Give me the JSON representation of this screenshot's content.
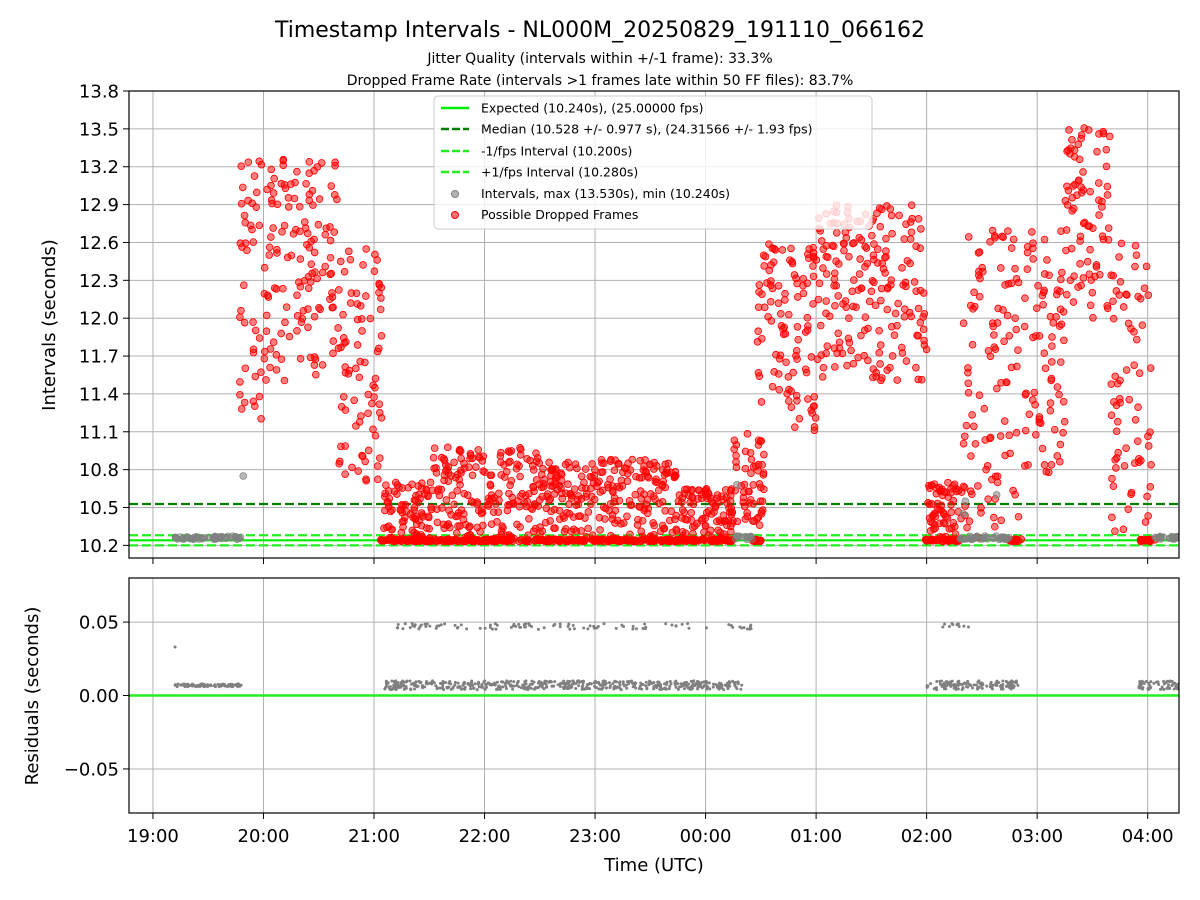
{
  "figure": {
    "title": "Timestamp Intervals - NL000M_20250829_191110_066162",
    "subtitle_1": "Jitter Quality (intervals within +/-1 frame): 33.3%",
    "subtitle_2": "Dropped Frame Rate (intervals >1 frames late within 50 FF files): 83.7%"
  },
  "colors": {
    "expected": "#00ee00",
    "median": "#008000",
    "interval_lines": "#22ee22",
    "points": "#808080",
    "dropped": "#ff0000",
    "residual_line": "#22ee22",
    "grid": "#b0b0b0"
  },
  "chart_data": [
    {
      "type": "scatter",
      "panel": "top",
      "xlabel": "",
      "ylabel": "Intervals (seconds)",
      "ylim": [
        10.1,
        13.8
      ],
      "yticks": [
        "10.2",
        "10.5",
        "10.8",
        "11.1",
        "11.4",
        "11.7",
        "12.0",
        "12.3",
        "12.6",
        "12.9",
        "13.2",
        "13.5",
        "13.8"
      ],
      "x_axis": {
        "type": "time",
        "range": [
          "18:47",
          "04:17"
        ],
        "ticks": [
          "19:00",
          "20:00",
          "21:00",
          "22:00",
          "23:00",
          "00:00",
          "01:00",
          "02:00",
          "03:00",
          "04:00"
        ]
      },
      "grid": true,
      "legend_position": "upper-center",
      "reference_lines": [
        {
          "name": "Expected (10.240s), (25.00000 fps)",
          "y": 10.24,
          "style": "solid",
          "color": "#00ee00"
        },
        {
          "name": "Median (10.528 +/- 0.977 s), (24.31566 +/- 1.93 fps)",
          "y": 10.528,
          "style": "dashed",
          "color": "#008000"
        },
        {
          "name": "-1/fps Interval (10.200s)",
          "y": 10.2,
          "style": "dashed",
          "color": "#22ee22"
        },
        {
          "name": "+1/fps Interval (10.280s)",
          "y": 10.28,
          "style": "dashed",
          "color": "#22ee22"
        }
      ],
      "series": [
        {
          "name": "Intervals, max (13.530s), min (10.240s)",
          "marker": "circle",
          "color": "#808080",
          "max": 13.53,
          "min": 10.24
        },
        {
          "name": "Possible Dropped Frames",
          "marker": "circle",
          "color": "#ff0000",
          "segments": [
            {
              "x": [
                "19:47",
                "20:03"
              ],
              "y": [
                11.2,
                13.45
              ]
            },
            {
              "x": [
                "20:03",
                "20:40"
              ],
              "y": [
                11.5,
                13.3
              ]
            },
            {
              "x": [
                "20:40",
                "21:05"
              ],
              "y": [
                10.7,
                12.6
              ]
            },
            {
              "x": [
                "21:05",
                "21:30"
              ],
              "y": [
                10.24,
                10.7
              ]
            },
            {
              "x": [
                "21:30",
                "22:30"
              ],
              "y": [
                10.24,
                10.98
              ]
            },
            {
              "x": [
                "22:30",
                "23:45"
              ],
              "y": [
                10.24,
                10.88
              ]
            },
            {
              "x": [
                "23:45",
                "00:15"
              ],
              "y": [
                10.24,
                10.65
              ]
            },
            {
              "x": [
                "00:15",
                "00:32"
              ],
              "y": [
                10.3,
                11.1
              ]
            },
            {
              "x": [
                "00:28",
                "01:00"
              ],
              "y": [
                11.1,
                12.6
              ]
            },
            {
              "x": [
                "01:00",
                "02:00"
              ],
              "y": [
                11.5,
                12.9
              ]
            },
            {
              "x": [
                "02:00",
                "02:22"
              ],
              "y": [
                10.24,
                10.7
              ]
            },
            {
              "x": [
                "02:20",
                "02:50"
              ],
              "y": [
                10.24,
                12.7
              ]
            },
            {
              "x": [
                "02:52",
                "03:15"
              ],
              "y": [
                10.7,
                12.7
              ]
            },
            {
              "x": [
                "03:15",
                "03:40"
              ],
              "y": [
                12.0,
                13.53
              ]
            },
            {
              "x": [
                "03:40",
                "04:02"
              ],
              "y": [
                10.3,
                12.6
              ]
            }
          ],
          "floor_bands": [
            {
              "x": [
                "21:03",
                "22:30"
              ],
              "y": 10.24
            },
            {
              "x": [
                "22:30",
                "00:15"
              ],
              "y": 10.24
            },
            {
              "x": [
                "00:25",
                "00:30"
              ],
              "y": 10.24
            },
            {
              "x": [
                "01:58",
                "02:18"
              ],
              "y": 10.24
            },
            {
              "x": [
                "02:45",
                "02:52"
              ],
              "y": 10.24
            },
            {
              "x": [
                "03:56",
                "04:05"
              ],
              "y": 10.24
            }
          ]
        }
      ]
    },
    {
      "type": "scatter",
      "panel": "bottom",
      "xlabel": "Time (UTC)",
      "ylabel": "Residuals (seconds)",
      "ylim": [
        -0.08,
        0.08
      ],
      "yticks": [
        "−0.05",
        "0.00",
        "0.05"
      ],
      "ytick_values": [
        -0.05,
        0.0,
        0.05
      ],
      "x_axis": {
        "type": "time",
        "range": [
          "18:47",
          "04:17"
        ],
        "ticks": [
          "19:00",
          "20:00",
          "21:00",
          "22:00",
          "23:00",
          "00:00",
          "01:00",
          "02:00",
          "03:00",
          "04:00"
        ]
      },
      "grid": true,
      "reference_lines": [
        {
          "y": 0.0,
          "style": "solid",
          "color": "#22ee22"
        }
      ],
      "series": [
        {
          "name": "",
          "color": "#808080",
          "clusters": [
            {
              "x": [
                "19:12",
                "19:12"
              ],
              "y": [
                0.033,
                0.033
              ]
            },
            {
              "x": [
                "19:12",
                "19:48"
              ],
              "y": [
                0.006,
                0.008
              ]
            },
            {
              "x": [
                "21:05",
                "00:20"
              ],
              "y": [
                0.004,
                0.01
              ]
            },
            {
              "x": [
                "21:12",
                "00:28"
              ],
              "y": [
                0.045,
                0.049
              ]
            },
            {
              "x": [
                "02:00",
                "02:50"
              ],
              "y": [
                0.004,
                0.01
              ]
            },
            {
              "x": [
                "02:07",
                "02:27"
              ],
              "y": [
                0.046,
                0.049
              ]
            },
            {
              "x": [
                "03:55",
                "04:17"
              ],
              "y": [
                0.004,
                0.01
              ]
            }
          ]
        }
      ]
    }
  ]
}
